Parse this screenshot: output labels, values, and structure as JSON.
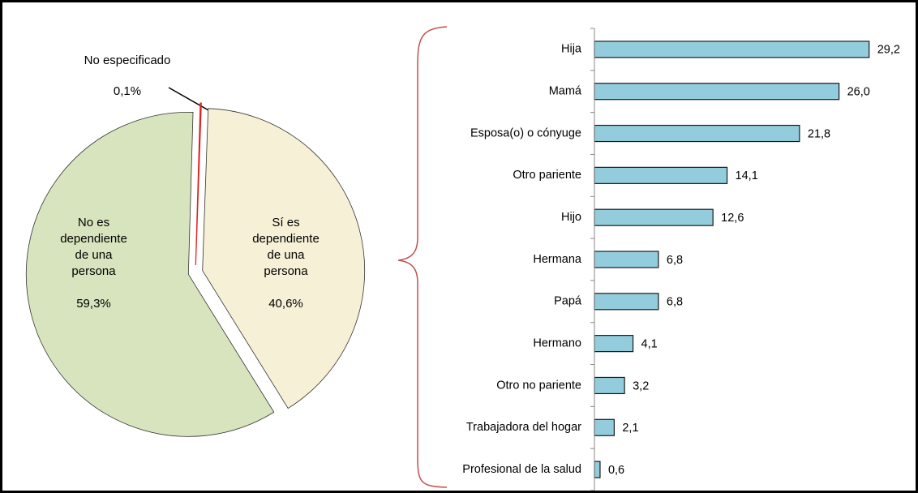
{
  "chart_data": [
    {
      "type": "pie",
      "categories": [
        "Sí es dependiente de una persona",
        "No es dependiente de una persona",
        "No especificado"
      ],
      "values": [
        40.6,
        59.3,
        0.1
      ],
      "value_labels": [
        "40,6%",
        "59,3%",
        "0,1%"
      ],
      "colors": [
        "#f6f0d6",
        "#d8e4bd",
        "#ffffff"
      ]
    },
    {
      "type": "bar",
      "orientation": "horizontal",
      "categories": [
        "Hija",
        "Mamá",
        "Esposa(o) o cónyuge",
        "Otro pariente",
        "Hijo",
        "Hermana",
        "Papá",
        "Hermano",
        "Otro no pariente",
        "Trabajadora del hogar",
        "Profesional de la salud"
      ],
      "values": [
        29.2,
        26.0,
        21.8,
        14.1,
        12.6,
        6.8,
        6.8,
        4.1,
        3.2,
        2.1,
        0.6
      ],
      "value_labels": [
        "29,2",
        "26,0",
        "21,8",
        "14,1",
        "12,6",
        "6,8",
        "6,8",
        "4,1",
        "3,2",
        "2,1",
        "0,6"
      ],
      "color": "#93cddd",
      "xlim": [
        0,
        30
      ]
    }
  ]
}
